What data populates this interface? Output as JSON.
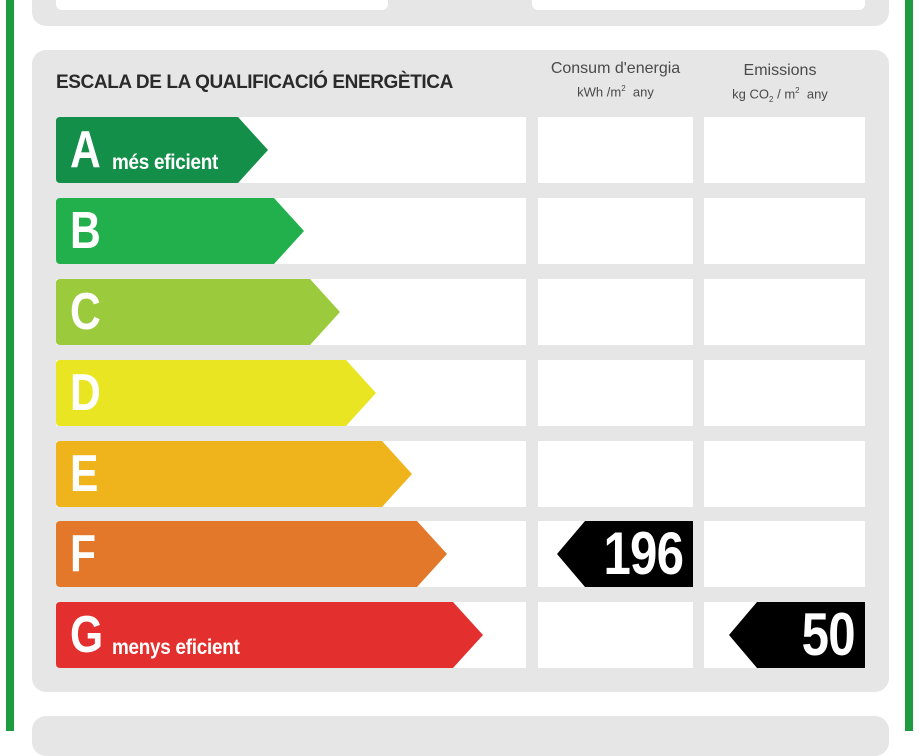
{
  "header": {
    "title": "ESCALA DE LA QUALIFICACIÓ ENERGÈTICA",
    "consum_title": "Consum d'energia",
    "consum_unit": "kWh /m",
    "consum_unit_sup": "2",
    "consum_unit_tail": "any",
    "emis_title": "Emissions",
    "emis_unit_a": "kg CO",
    "emis_unit_sub": "2",
    "emis_unit_b": "/ m",
    "emis_unit_sup": "2",
    "emis_unit_tail": "any"
  },
  "scale": [
    {
      "letter": "A",
      "label": "més eficient",
      "color": "#138f4a"
    },
    {
      "letter": "B",
      "label": "",
      "color": "#21b04b"
    },
    {
      "letter": "C",
      "label": "",
      "color": "#9bca3d"
    },
    {
      "letter": "D",
      "label": "",
      "color": "#e9e523"
    },
    {
      "letter": "E",
      "label": "",
      "color": "#efb31b"
    },
    {
      "letter": "F",
      "label": "",
      "color": "#e3782b"
    },
    {
      "letter": "G",
      "label": "menys eficient",
      "color": "#e3302f"
    }
  ],
  "rating": {
    "consum_class": "F",
    "consum_value": "196",
    "emissions_class": "G",
    "emissions_value": "50",
    "badge_color": "#000000"
  }
}
